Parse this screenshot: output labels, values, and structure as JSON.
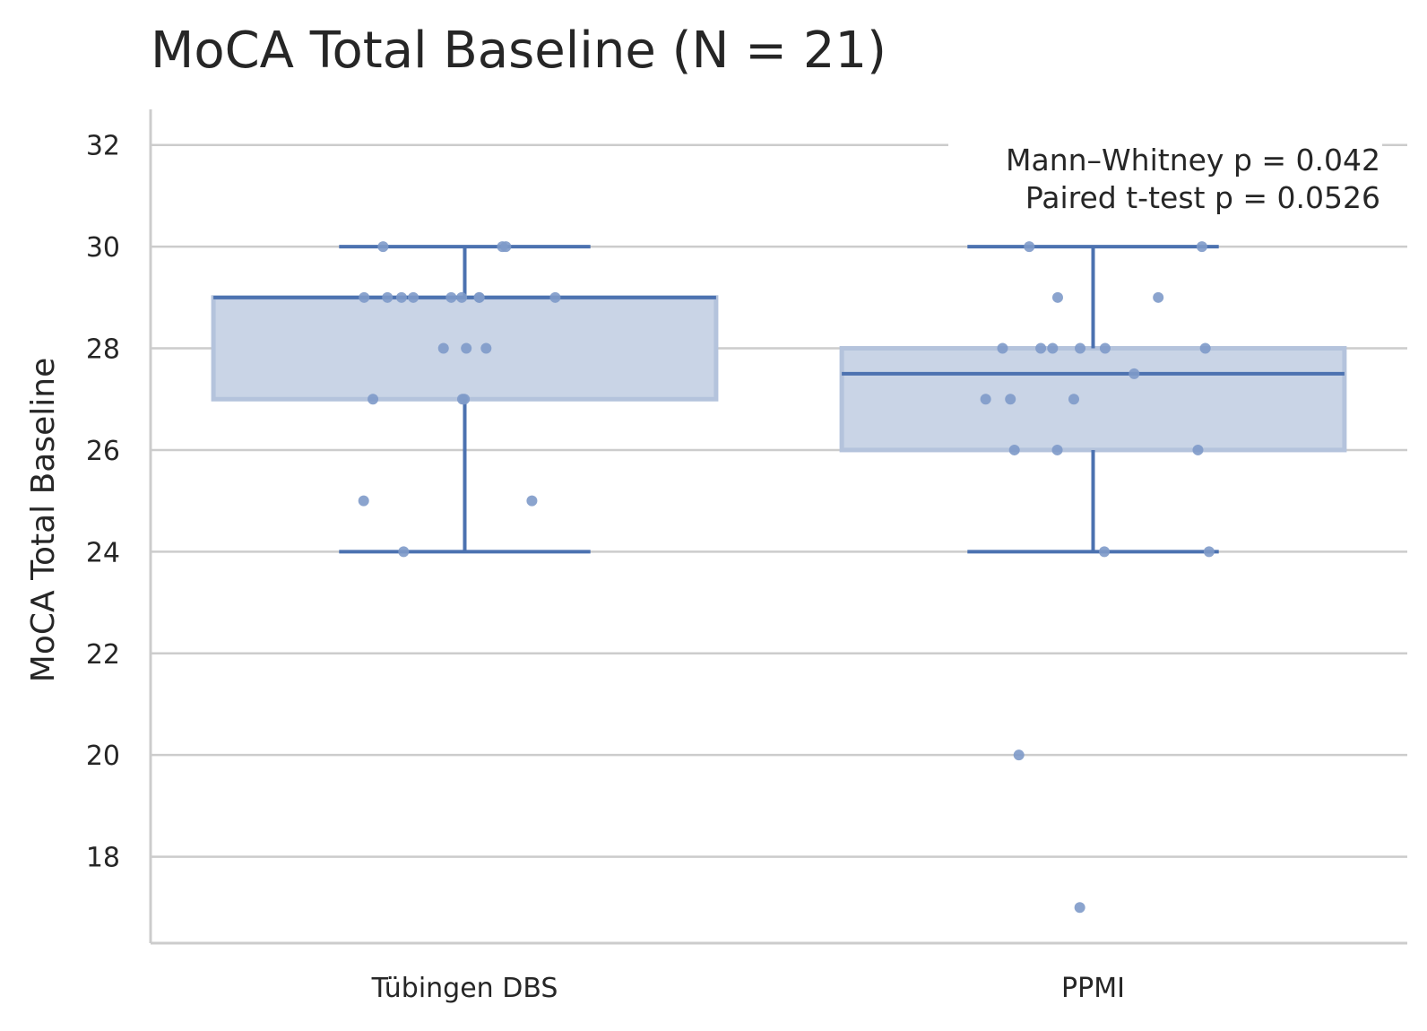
{
  "chart_data": {
    "type": "box",
    "title": "MoCA Total Baseline (N = 21)",
    "xlabel": "",
    "ylabel": "MoCA Total Baseline",
    "categories": [
      "Tübingen DBS",
      "PPMI"
    ],
    "ylim": [
      16.3,
      32.7
    ],
    "yticks": [
      18,
      20,
      22,
      24,
      26,
      28,
      30,
      32
    ],
    "grid": "horizontal",
    "colors": {
      "box_fill": "#c9d4e6",
      "box_edge": "#4c72b0",
      "whisker": "#4c72b0",
      "point": "#7e9ac9",
      "grid": "#cccccc",
      "axis": "#cccccc",
      "text": "#262626"
    },
    "boxes": [
      {
        "category": "Tübingen DBS",
        "q1": 27,
        "median": 29,
        "q3": 29,
        "whisker_low": 24,
        "whisker_high": 30
      },
      {
        "category": "PPMI",
        "q1": 26,
        "median": 27.5,
        "q3": 28,
        "whisker_low": 24,
        "whisker_high": 30
      }
    ],
    "points": [
      {
        "category": "Tübingen DBS",
        "values": [
          27,
          29,
          27,
          24,
          29,
          28,
          29,
          29,
          28,
          28,
          29,
          25,
          30,
          25,
          27,
          29,
          30,
          30,
          29,
          29,
          29
        ]
      },
      {
        "category": "PPMI",
        "values": [
          27,
          26,
          28,
          28,
          17,
          30,
          20,
          27,
          28,
          27.5,
          28,
          26,
          24,
          28,
          30,
          24,
          28,
          27,
          29,
          29,
          26
        ]
      }
    ],
    "annotations": [
      "Mann–Whitney p = 0.042",
      "Paired t-test p = 0.0526"
    ]
  }
}
